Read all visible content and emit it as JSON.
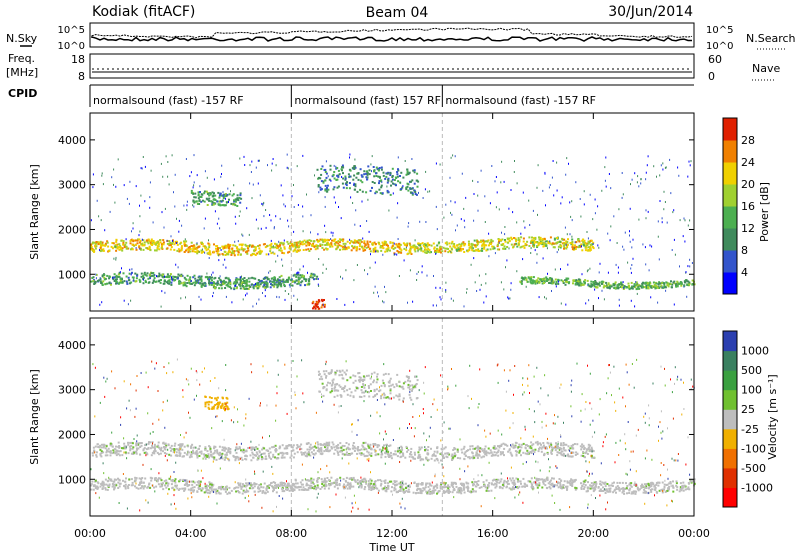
{
  "header": {
    "station": "Kodiak (fitACF)",
    "beam": "Beam 04",
    "date": "30/Jun/2014"
  },
  "labels": {
    "nsky": "N.Sky",
    "nsearch": "N.Search",
    "freq_line1": "Freq.",
    "freq_line2": "[MHz]",
    "nave": "Nave",
    "cpid": "CPID",
    "slant_range": "Slant Range [km]",
    "time_axis": "Time UT",
    "power": "Power [dB]",
    "velocity": "Velocity [m s⁻¹]"
  },
  "noise_panel": {
    "left_ticks": [
      "10^5",
      "10^0"
    ],
    "right_ticks": [
      "10^5",
      "10^0"
    ]
  },
  "freq_panel": {
    "left_ticks": [
      "18",
      "8"
    ],
    "right_ticks": [
      "60",
      "0"
    ]
  },
  "cpid_segments": [
    {
      "label": "normalsound (fast) -157 RF",
      "start_hr": 0,
      "end_hr": 8
    },
    {
      "label": "normalsound (fast) 157 RF",
      "start_hr": 8,
      "end_hr": 14
    },
    {
      "label": "normalsound (fast) -157 RF",
      "start_hr": 14,
      "end_hr": 24
    }
  ],
  "chart_data": [
    {
      "type": "heatmap",
      "title": "",
      "xlabel": "",
      "ylabel": "Slant Range [km]",
      "x_ticks": [
        "00:00",
        "04:00",
        "08:00",
        "12:00",
        "16:00",
        "20:00",
        "00:00"
      ],
      "xlim_hours": [
        0,
        24
      ],
      "y_ticks": [
        1000,
        2000,
        3000,
        4000
      ],
      "ylim": [
        180,
        4600
      ],
      "colorbar": {
        "label": "Power [dB]",
        "ticks": [
          4,
          8,
          12,
          16,
          20,
          24,
          28
        ],
        "colors": [
          "#0000ff",
          "#3355cc",
          "#3f8a5c",
          "#4caf50",
          "#a0d030",
          "#f0d000",
          "#f08000",
          "#e02000"
        ]
      },
      "features": [
        {
          "name": "main band",
          "range_km": [
            1500,
            1750
          ],
          "hours": [
            0,
            13
          ],
          "power_db": 20
        },
        {
          "name": "main band late",
          "range_km": [
            1550,
            1800
          ],
          "hours": [
            13,
            20
          ],
          "power_db": 18
        },
        {
          "name": "low band",
          "range_km": [
            750,
            1000
          ],
          "hours": [
            0,
            9
          ],
          "power_db": 10
        },
        {
          "name": "low band late",
          "range_km": [
            750,
            900
          ],
          "hours": [
            17,
            24
          ],
          "power_db": 12
        },
        {
          "name": "high patch",
          "range_km": [
            2600,
            2900
          ],
          "hours": [
            4,
            6
          ],
          "power_db": 10
        },
        {
          "name": "upper band",
          "range_km": [
            2800,
            3400
          ],
          "hours": [
            9,
            13
          ],
          "power_db": 8
        },
        {
          "name": "near range spot",
          "range_km": [
            200,
            400
          ],
          "hours": [
            8.8,
            9.3
          ],
          "power_db": 28
        }
      ]
    },
    {
      "type": "heatmap",
      "title": "",
      "xlabel": "Time UT",
      "ylabel": "Slant Range [km]",
      "x_ticks": [
        "00:00",
        "04:00",
        "08:00",
        "12:00",
        "16:00",
        "20:00",
        "00:00"
      ],
      "xlim_hours": [
        0,
        24
      ],
      "y_ticks": [
        1000,
        2000,
        3000,
        4000
      ],
      "ylim": [
        180,
        4600
      ],
      "colorbar": {
        "label": "Velocity [m s⁻¹]",
        "ticks": [
          1000,
          500,
          100,
          25,
          -25,
          -100,
          -500,
          -1000
        ],
        "colors": [
          "#2b3fb0",
          "#3a8060",
          "#3aa040",
          "#70c030",
          "#bdbdbd",
          "#f0b000",
          "#f07000",
          "#e03000",
          "#ff0000"
        ]
      },
      "features": [
        {
          "name": "main band",
          "range_km": [
            1500,
            1800
          ],
          "hours": [
            0,
            20
          ],
          "velocity": 0
        },
        {
          "name": "low band",
          "range_km": [
            750,
            1000
          ],
          "hours": [
            0,
            24
          ],
          "velocity": 0
        },
        {
          "name": "upper band",
          "range_km": [
            2800,
            3400
          ],
          "hours": [
            9,
            13
          ],
          "velocity": 0
        },
        {
          "name": "high patch",
          "range_km": [
            2600,
            2900
          ],
          "hours": [
            4.5,
            5.5
          ],
          "velocity": -100
        }
      ]
    }
  ]
}
